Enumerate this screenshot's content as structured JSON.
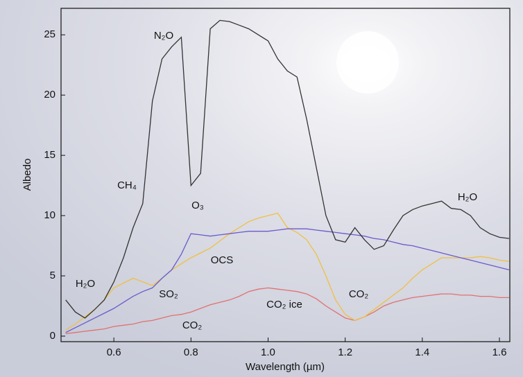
{
  "chart_data": {
    "type": "line",
    "xlabel": "Wavelength (µm)",
    "ylabel": "Albedo",
    "xlim": [
      0.463,
      1.627
    ],
    "ylim": [
      -0.46,
      27.2
    ],
    "xticks": [
      0.6,
      0.8,
      {
        "value": 1.0,
        "label": "1.0"
      },
      1.2,
      1.4,
      1.6
    ],
    "yticks": [
      0,
      5,
      10,
      15,
      20,
      25
    ],
    "x": [
      0.475,
      0.5,
      0.525,
      0.55,
      0.575,
      0.6,
      0.625,
      0.65,
      0.675,
      0.7,
      0.725,
      0.75,
      0.775,
      0.8,
      0.825,
      0.85,
      0.875,
      0.9,
      0.925,
      0.95,
      0.975,
      1.0,
      1.025,
      1.05,
      1.075,
      1.1,
      1.125,
      1.15,
      1.175,
      1.2,
      1.225,
      1.25,
      1.275,
      1.3,
      1.325,
      1.35,
      1.375,
      1.4,
      1.425,
      1.45,
      1.475,
      1.5,
      1.525,
      1.55,
      1.575,
      1.6,
      1.625
    ],
    "series": [
      {
        "color": "#e07070",
        "values": [
          0.2,
          0.3,
          0.4,
          0.5,
          0.6,
          0.8,
          0.9,
          1.0,
          1.2,
          1.3,
          1.5,
          1.7,
          1.8,
          2.0,
          2.3,
          2.6,
          2.8,
          3.0,
          3.3,
          3.7,
          3.9,
          4.0,
          3.9,
          3.8,
          3.7,
          3.5,
          3.1,
          2.5,
          2.0,
          1.5,
          1.3,
          1.6,
          2.0,
          2.5,
          2.8,
          3.0,
          3.2,
          3.3,
          3.4,
          3.5,
          3.5,
          3.4,
          3.4,
          3.3,
          3.3,
          3.2,
          3.2
        ]
      },
      {
        "color": "#f0c040",
        "values": [
          0.5,
          1.0,
          1.6,
          2.2,
          3.0,
          4.0,
          4.4,
          4.8,
          4.5,
          4.2,
          4.8,
          5.5,
          6.0,
          6.5,
          6.9,
          7.3,
          7.9,
          8.5,
          9.0,
          9.5,
          9.8,
          10.0,
          10.2,
          9.0,
          8.6,
          8.0,
          6.8,
          5.0,
          3.0,
          1.8,
          1.3,
          1.6,
          2.2,
          2.8,
          3.4,
          4.0,
          4.8,
          5.5,
          6.0,
          6.5,
          6.5,
          6.5,
          6.5,
          6.6,
          6.5,
          6.3,
          6.2
        ]
      },
      {
        "color": "#6a5acd",
        "values": [
          0.3,
          0.7,
          1.1,
          1.5,
          1.9,
          2.3,
          2.8,
          3.3,
          3.7,
          4.0,
          4.8,
          5.5,
          6.8,
          8.5,
          8.4,
          8.3,
          8.4,
          8.5,
          8.6,
          8.7,
          8.7,
          8.7,
          8.8,
          8.9,
          8.9,
          8.9,
          8.8,
          8.7,
          8.6,
          8.5,
          8.4,
          8.3,
          8.1,
          8.0,
          7.8,
          7.6,
          7.5,
          7.3,
          7.1,
          6.9,
          6.7,
          6.5,
          6.3,
          6.1,
          5.9,
          5.7,
          5.5
        ]
      },
      {
        "color": "#333333",
        "values": [
          3.0,
          2.0,
          1.5,
          2.2,
          3.0,
          4.5,
          6.5,
          9.0,
          11.0,
          19.5,
          23.0,
          24.0,
          24.8,
          12.5,
          13.5,
          25.5,
          26.2,
          26.1,
          25.8,
          25.5,
          25.0,
          24.5,
          23.0,
          22.0,
          21.5,
          18.0,
          14.0,
          10.0,
          8.0,
          7.8,
          9.0,
          8.0,
          7.2,
          7.5,
          8.8,
          10.0,
          10.5,
          10.8,
          11.0,
          11.2,
          10.6,
          10.5,
          10.0,
          9.0,
          8.5,
          8.2,
          8.1
        ]
      }
    ],
    "annotations": [
      "H₂O",
      "SO₂",
      "CO₂",
      "CH₄",
      "N₂O",
      "O₃",
      "OCS",
      "CO₂ ice",
      "CO₂",
      "H₂O"
    ]
  }
}
